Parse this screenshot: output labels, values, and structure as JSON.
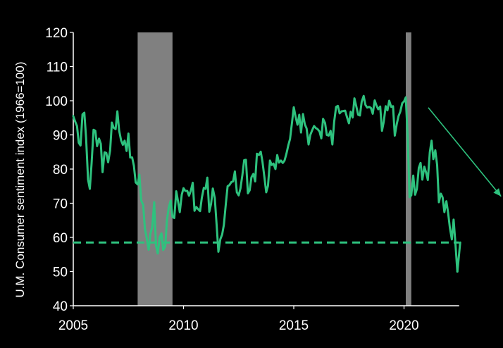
{
  "chart_data": {
    "type": "line",
    "title": "",
    "xlabel": "",
    "ylabel": "U.M. Consumer sentiment index (1966=100)",
    "xlim": [
      2005,
      2022.5
    ],
    "ylim": [
      40,
      120
    ],
    "x_ticks": [
      "2005",
      "2010",
      "2015",
      "2020"
    ],
    "y_ticks": [
      "40",
      "50",
      "60",
      "70",
      "80",
      "90",
      "100",
      "110",
      "120"
    ],
    "grid": false,
    "colors": {
      "background": "#000000",
      "line": "#2ec27e",
      "recession_band": "#808080",
      "axis": "#ffffff",
      "text": "#ffffff"
    },
    "recessions": [
      {
        "start": 2007.92,
        "end": 2009.5
      },
      {
        "start": 2020.08,
        "end": 2020.33
      }
    ],
    "reference_line": {
      "value": 58.5,
      "style": "dashed"
    },
    "trend_arrow": {
      "from": [
        2021.1,
        98
      ],
      "to": [
        2024.4,
        72
      ]
    },
    "series": [
      {
        "x": [
          2005.0,
          2005.08,
          2005.17,
          2005.25,
          2005.33,
          2005.42,
          2005.5,
          2005.58,
          2005.67,
          2005.75,
          2005.83,
          2005.92,
          2006.0,
          2006.08,
          2006.17,
          2006.25,
          2006.33,
          2006.42,
          2006.5,
          2006.58,
          2006.67,
          2006.75,
          2006.83,
          2006.92,
          2007.0,
          2007.08,
          2007.17,
          2007.25,
          2007.33,
          2007.42,
          2007.5,
          2007.58,
          2007.67,
          2007.75,
          2007.83,
          2007.92,
          2008.0,
          2008.08,
          2008.17,
          2008.25,
          2008.33,
          2008.42,
          2008.5,
          2008.58,
          2008.67,
          2008.75,
          2008.83,
          2008.92,
          2009.0,
          2009.08,
          2009.17,
          2009.25,
          2009.33,
          2009.42,
          2009.5,
          2009.58,
          2009.67,
          2009.75,
          2009.83,
          2009.92,
          2010.0,
          2010.08,
          2010.17,
          2010.25,
          2010.33,
          2010.42,
          2010.5,
          2010.58,
          2010.67,
          2010.75,
          2010.83,
          2010.92,
          2011.0,
          2011.08,
          2011.17,
          2011.25,
          2011.33,
          2011.42,
          2011.5,
          2011.58,
          2011.67,
          2011.75,
          2011.83,
          2011.92,
          2012.0,
          2012.08,
          2012.17,
          2012.25,
          2012.33,
          2012.42,
          2012.5,
          2012.58,
          2012.67,
          2012.75,
          2012.83,
          2012.92,
          2013.0,
          2013.08,
          2013.17,
          2013.25,
          2013.33,
          2013.42,
          2013.5,
          2013.58,
          2013.67,
          2013.75,
          2013.83,
          2013.92,
          2014.0,
          2014.08,
          2014.17,
          2014.25,
          2014.33,
          2014.42,
          2014.5,
          2014.58,
          2014.67,
          2014.75,
          2014.83,
          2014.92,
          2015.0,
          2015.08,
          2015.17,
          2015.25,
          2015.33,
          2015.42,
          2015.5,
          2015.58,
          2015.67,
          2015.75,
          2015.83,
          2015.92,
          2016.0,
          2016.08,
          2016.17,
          2016.25,
          2016.33,
          2016.42,
          2016.5,
          2016.58,
          2016.67,
          2016.75,
          2016.83,
          2016.92,
          2017.0,
          2017.08,
          2017.17,
          2017.25,
          2017.33,
          2017.42,
          2017.5,
          2017.58,
          2017.67,
          2017.75,
          2017.83,
          2017.92,
          2018.0,
          2018.08,
          2018.17,
          2018.25,
          2018.33,
          2018.42,
          2018.5,
          2018.58,
          2018.67,
          2018.75,
          2018.83,
          2018.92,
          2019.0,
          2019.08,
          2019.17,
          2019.25,
          2019.33,
          2019.42,
          2019.5,
          2019.58,
          2019.67,
          2019.75,
          2019.83,
          2019.92,
          2020.0,
          2020.08,
          2020.17,
          2020.25,
          2020.33,
          2020.42,
          2020.5,
          2020.58,
          2020.67,
          2020.75,
          2020.83,
          2020.92,
          2021.0,
          2021.08,
          2021.17,
          2021.25,
          2021.33,
          2021.42,
          2021.5,
          2021.58,
          2021.67,
          2021.75,
          2021.83,
          2021.92,
          2022.0,
          2022.08,
          2022.17,
          2022.25,
          2022.33,
          2022.42
        ],
        "values": [
          95.5,
          94,
          92.6,
          87.7,
          86.9,
          96,
          96.5,
          89.1,
          76.9,
          74.2,
          81.6,
          91.5,
          91.2,
          86.7,
          88.9,
          87.4,
          79.1,
          84.9,
          84.7,
          82,
          85.4,
          93.6,
          92.1,
          91.7,
          96.9,
          91.3,
          88.4,
          87.1,
          88.3,
          85.3,
          90.4,
          83.4,
          83.4,
          80.9,
          76.1,
          75.5,
          78.4,
          70.8,
          69.5,
          62.6,
          59.8,
          56.4,
          61.2,
          63,
          70.3,
          57.6,
          55.3,
          60.1,
          61.2,
          56.3,
          57.3,
          65.1,
          68.7,
          70.8,
          66,
          65.7,
          73.5,
          70.6,
          67.4,
          72.5,
          74.4,
          73.6,
          73.6,
          72.2,
          73.6,
          76,
          67.8,
          68.9,
          68.2,
          67.7,
          71.6,
          74.5,
          74.2,
          77.5,
          67.5,
          69.8,
          74.3,
          71.5,
          63.7,
          55.8,
          59.5,
          60.8,
          63.7,
          69.9,
          75,
          75.3,
          76.2,
          76.4,
          79.3,
          73.2,
          72.3,
          74.3,
          78.3,
          82.6,
          82.7,
          72.9,
          73.8,
          77.6,
          78.6,
          76.4,
          84.5,
          84.1,
          85.1,
          82.1,
          77.5,
          73.2,
          75.1,
          82.5,
          81.2,
          81.6,
          80,
          84.1,
          81.9,
          82.5,
          81.8,
          82.5,
          84.6,
          86.9,
          88.8,
          93.6,
          98.1,
          95.4,
          93,
          95.9,
          90.7,
          96.1,
          93.1,
          91.9,
          87.2,
          90,
          91.3,
          92.6,
          92,
          91.7,
          91,
          89,
          94.7,
          93.5,
          90,
          89.8,
          91.2,
          87.2,
          93.8,
          98.2,
          98.5,
          96.3,
          96.9,
          97,
          97.1,
          95.1,
          93.4,
          96.8,
          95.1,
          100.7,
          98.5,
          95.9,
          95.7,
          99.7,
          101.4,
          98.8,
          98,
          98.2,
          97.9,
          96.2,
          100.1,
          98.6,
          97.5,
          98.3,
          91.2,
          93.8,
          98.4,
          97.2,
          100,
          98.2,
          98.4,
          89.8,
          93.2,
          95.5,
          96.8,
          99.3,
          99.8,
          101,
          89.1,
          71.8,
          72.3,
          78.1,
          72.5,
          74.1,
          80.4,
          81.8,
          76.9,
          80.7,
          79,
          76.8,
          84.9,
          88.3,
          82.9,
          85.5,
          81.2,
          70.3,
          72.8,
          71.7,
          67.4,
          70.6,
          67.2,
          62.8,
          59.4,
          65.2,
          58.4,
          50
        ]
      }
    ]
  }
}
